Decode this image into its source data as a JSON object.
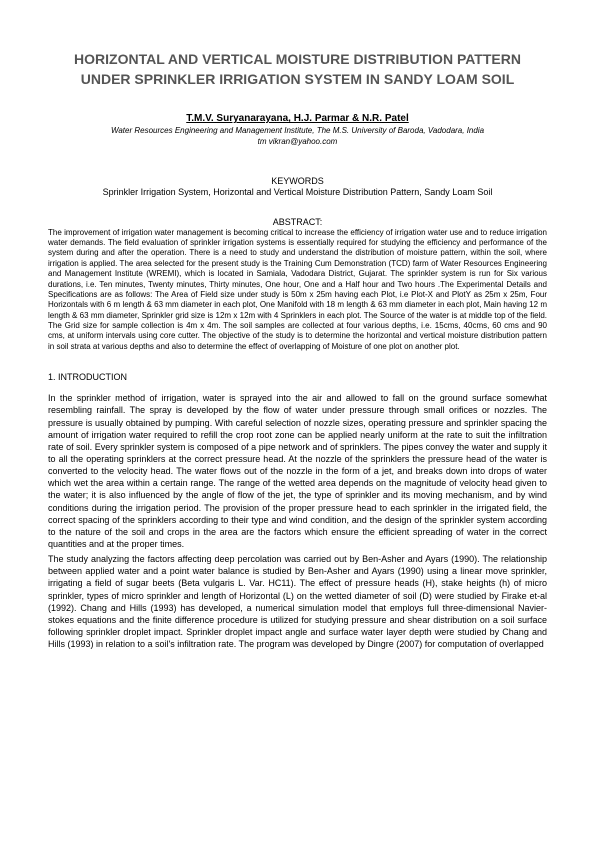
{
  "title": "HORIZONTAL AND VERTICAL MOISTURE DISTRIBUTION PATTERN UNDER SPRINKLER IRRIGATION SYSTEM IN SANDY LOAM SOIL",
  "authors": "T.M.V. Suryanarayana, H.J. Parmar & N.R. Patel",
  "affiliation": "Water Resources Engineering and Management Institute, The M.S. University of Baroda, Vadodara, India",
  "email": "tm vikran@yahoo.com",
  "keywords_heading": "KEYWORDS",
  "keywords_text": "Sprinkler Irrigation System, Horizontal and Vertical Moisture Distribution Pattern, Sandy Loam Soil",
  "abstract_heading": "ABSTRACT:",
  "abstract_text": "The improvement of irrigation water management is becoming critical to increase the efficiency of irrigation water use and to reduce irrigation water demands. The field evaluation of sprinkler irrigation systems is essentially required for studying the efficiency and performance of the system during and after the operation. There is a need to study and understand the distribution of moisture pattern, within the soil, where irrigation is applied. The area selected for the present study is the Training Cum Demonstration (TCD) farm of Water Resources Engineering and Management Institute (WREMI), which is located in Samiala, Vadodara District, Gujarat. The sprinkler system is run for Six various durations, i.e. Ten minutes, Twenty minutes, Thirty minutes, One hour, One and a Half hour and Two hours .The Experimental Details and Specifications are as follows: The Area of Field size under study is 50m x 25m having each Plot, i.e Plot-X and PlotY as 25m x 25m, Four Horizontals with 6 m length & 63 mm diameter in each plot, One Manifold with 18 m length & 63 mm diameter in each plot, Main having 12 m length & 63 mm diameter, Sprinkler grid size is 12m x 12m with 4 Sprinklers in each plot. The Source of the water is at middle top of the field. The Grid size for sample collection is 4m x 4m. The soil samples are collected at four various depths, i.e. 15cms, 40cms, 60 cms and 90 cms, at uniform intervals using core cutter. The objective of the study is to determine the horizontal and vertical moisture distribution pattern in soil strata at various depths and also to determine the effect of overlapping of Moisture of one plot on another plot.",
  "section_heading": "1. INTRODUCTION",
  "body_para1": "In the sprinkler method of irrigation, water is sprayed into the air and allowed to fall on the ground surface somewhat resembling rainfall. The spray is developed by the flow of water under pressure through small orifices or nozzles. The pressure is usually obtained by pumping. With careful selection of nozzle sizes, operating pressure and sprinkler spacing the amount of irrigation water required to refill the crop root zone can be applied nearly uniform at the rate to suit the infiltration rate of soil. Every sprinkler system is composed of a pipe network and of sprinklers. The pipes convey the water and supply it to all the operating sprinklers at the correct pressure head. At the nozzle of the sprinklers the pressure head of the water is converted to the velocity head. The water flows out of the nozzle in the form of a jet, and breaks down into drops of water which wet the area within a certain range. The range of the wetted area depends on the magnitude of velocity head given to the water; it is also influenced by the angle of flow of the jet, the type of sprinkler and its moving mechanism, and by wind conditions during the irrigation period. The provision of the proper pressure head to each sprinkler in the irrigated field, the correct spacing of the sprinklers according to their type and wind condition, and the design of the sprinkler system according to the nature of the soil and crops in the area are the factors which ensure the efficient spreading of water in the correct quantities and at the proper times.",
  "body_para2": "The study analyzing the factors affecting deep percolation was carried out by Ben-Asher and Ayars (1990). The relationship between applied water and a point water balance is studied by Ben-Asher and Ayars (1990) using a linear move sprinkler, irrigating a field of sugar beets (Beta vulgaris L. Var. HC11). The effect of pressure heads (H), stake heights (h) of micro sprinkler, types of micro sprinkler and length of Horizontal (L) on the wetted diameter of soil (D) were studied by Firake et-al (1992). Chang and Hills (1993) has developed, a numerical simulation model that employs full three-dimensional Navier-stokes equations and the finite difference procedure is utilized for studying pressure and shear distribution on a soil surface following sprinkler droplet impact. Sprinkler droplet impact angle and surface water layer depth were studied by Chang and Hills (1993) in relation to a soil's infiltration rate. The program was developed by Dingre (2007) for computation of overlapped"
}
